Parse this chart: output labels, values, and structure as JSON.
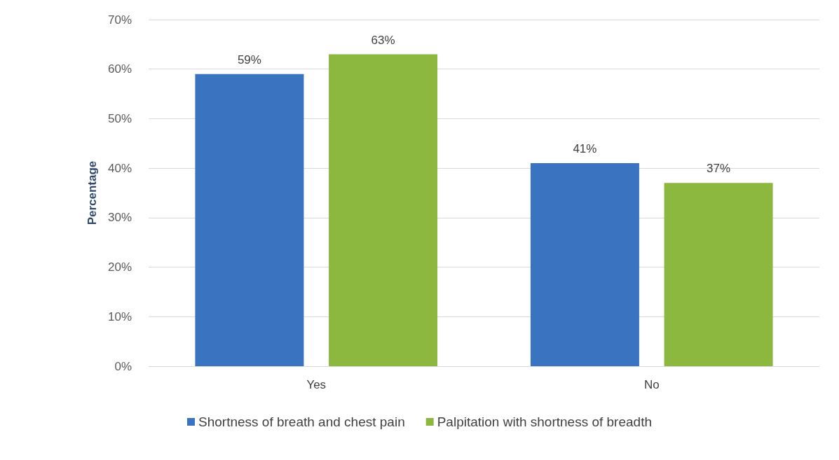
{
  "chart_data": {
    "type": "bar",
    "ylabel": "Percentage",
    "categories": [
      "Yes",
      "No"
    ],
    "series": [
      {
        "name": "Shortness of breath and chest pain",
        "color": "#3a74c0",
        "values": [
          59,
          41
        ],
        "value_labels": [
          "59%",
          "41%"
        ]
      },
      {
        "name": "Palpitation with shortness of breadth",
        "color": "#8cb83f",
        "values": [
          63,
          37
        ],
        "value_labels": [
          "63%",
          "37%"
        ]
      }
    ],
    "ylim": [
      0,
      70
    ],
    "yticks": [
      {
        "value": 0,
        "label": "0%"
      },
      {
        "value": 10,
        "label": "10%"
      },
      {
        "value": 20,
        "label": "20%"
      },
      {
        "value": 30,
        "label": "30%"
      },
      {
        "value": 40,
        "label": "40%"
      },
      {
        "value": 50,
        "label": "50%"
      },
      {
        "value": 60,
        "label": "60%"
      },
      {
        "value": 70,
        "label": "70%"
      }
    ],
    "grid": "y",
    "legend": "bottom"
  }
}
